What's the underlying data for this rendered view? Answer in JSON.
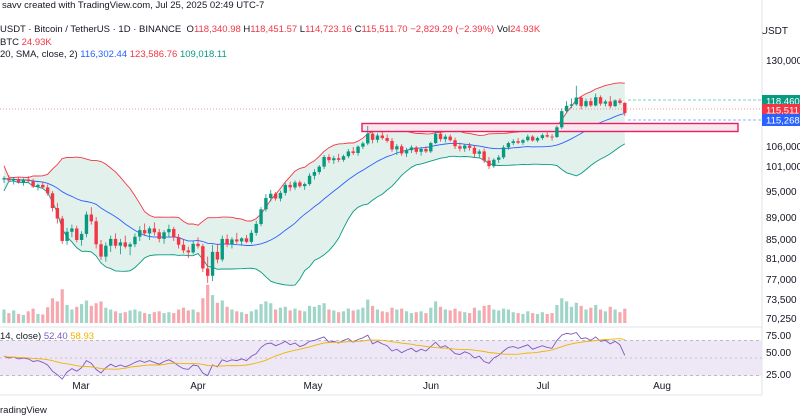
{
  "header": {
    "title": "savv created with TradingView.com, Jul 25, 2025 02:49 UTC-7",
    "symbol_line": "USDT · Bitcoin / TetherUS · 1D · BINANCE",
    "open_label": "O",
    "open": "118,340.98",
    "high_label": "H",
    "high": "118,451.57",
    "low_label": "L",
    "low": "114,723.16",
    "close_label": "C",
    "close": "115,511.70",
    "change": "−2,829.29 (−2.39%)",
    "vol_label": "Vol",
    "vol": "24.93K",
    "vol_line_label": "BTC",
    "vol_line_value": "24.93K",
    "bb_label": "20, SMA, close, 2)",
    "bb_basis": "116,302.44",
    "bb_upper": "123,586.76",
    "bb_lower": "109,018.11",
    "rsi_label": "14, close)",
    "rsi_value": "52.40",
    "rsi_ma": "58.93",
    "unit": "USDT",
    "footer": "radingView"
  },
  "colors": {
    "up": "#089981",
    "down": "#f23645",
    "basis": "#2962ff",
    "upper": "#f23645",
    "lower": "#089981",
    "band_fill": "#e3f1ec",
    "rsi_line": "#7e57c2",
    "rsi_ma": "#f0b400",
    "rsi_fill": "#ede7f6",
    "zone_border": "#e91e63"
  },
  "chart_data": {
    "type": "candlestick",
    "price_ticks": [
      "130,000",
      "118,460",
      "115,511",
      "115,268",
      "106,000",
      "101,000",
      "95,000",
      "89,000",
      "85,000",
      "81,000",
      "77,000",
      "73,500",
      "70,250"
    ],
    "rsi_ticks": [
      "75.00",
      "50.00",
      "25.00"
    ],
    "months": [
      "Mar",
      "Apr",
      "May",
      "Jun",
      "Jul",
      "Aug"
    ],
    "price_labels": [
      {
        "text": "118,460",
        "color": "#089981"
      },
      {
        "text": "115,511",
        "color": "#f23645"
      },
      {
        "text": "115,268",
        "color": "#2962ff"
      }
    ],
    "resistance_zone": [
      112000,
      111000
    ],
    "candles": [
      [
        98000,
        98800,
        97200,
        98300
      ],
      [
        98300,
        99000,
        97500,
        97800
      ],
      [
        97800,
        98500,
        96800,
        98100
      ],
      [
        98100,
        98600,
        97000,
        97400
      ],
      [
        97400,
        98300,
        96500,
        98000
      ],
      [
        98000,
        98800,
        97300,
        97600
      ],
      [
        97600,
        98200,
        96000,
        96300
      ],
      [
        96300,
        97000,
        95400,
        96700
      ],
      [
        96700,
        97500,
        95800,
        96100
      ],
      [
        96100,
        96800,
        94200,
        94700
      ],
      [
        94700,
        95200,
        90500,
        91300
      ],
      [
        91300,
        92500,
        88000,
        88900
      ],
      [
        88900,
        89500,
        84200,
        84800
      ],
      [
        84800,
        87200,
        84000,
        86500
      ],
      [
        86500,
        87800,
        85500,
        87100
      ],
      [
        87100,
        87600,
        84500,
        85000
      ],
      [
        85000,
        86600,
        83800,
        86100
      ],
      [
        86100,
        90500,
        85500,
        89800
      ],
      [
        89800,
        91500,
        87800,
        88400
      ],
      [
        88400,
        89200,
        83200,
        84100
      ],
      [
        84100,
        85000,
        80800,
        81500
      ],
      [
        81500,
        84500,
        80500,
        83800
      ],
      [
        83800,
        85800,
        82500,
        85200
      ],
      [
        85200,
        86200,
        83200,
        83800
      ],
      [
        83800,
        85200,
        82000,
        84500
      ],
      [
        84500,
        85800,
        83200,
        83600
      ],
      [
        83600,
        84500,
        81800,
        84100
      ],
      [
        84100,
        86200,
        83500,
        85600
      ],
      [
        85600,
        87500,
        84800,
        86800
      ],
      [
        86800,
        88000,
        85800,
        86200
      ],
      [
        86200,
        87500,
        85000,
        87100
      ],
      [
        87100,
        88200,
        85800,
        86400
      ],
      [
        86400,
        87000,
        84500,
        85200
      ],
      [
        85200,
        86800,
        84200,
        86400
      ],
      [
        86400,
        87800,
        85500,
        87000
      ],
      [
        87000,
        87400,
        84800,
        85500
      ],
      [
        85500,
        86100,
        83200,
        84000
      ],
      [
        84000,
        85200,
        82200,
        82800
      ],
      [
        82800,
        83600,
        81200,
        82400
      ],
      [
        82400,
        84800,
        82000,
        84200
      ],
      [
        84200,
        85500,
        83200,
        83700
      ],
      [
        83700,
        84200,
        78500,
        79200
      ],
      [
        79200,
        81500,
        76500,
        77800
      ],
      [
        77800,
        84000,
        76800,
        82500
      ],
      [
        82500,
        84200,
        80200,
        80900
      ],
      [
        80900,
        85800,
        80500,
        85200
      ],
      [
        85200,
        86000,
        83500,
        84100
      ],
      [
        84100,
        85500,
        83200,
        85100
      ],
      [
        85100,
        86300,
        84200,
        84700
      ],
      [
        84700,
        85500,
        83800,
        85300
      ],
      [
        85300,
        85900,
        84300,
        84600
      ],
      [
        84600,
        86800,
        84200,
        86300
      ],
      [
        86300,
        88500,
        85800,
        87900
      ],
      [
        87900,
        91500,
        87500,
        91000
      ],
      [
        91000,
        94500,
        90500,
        93600
      ],
      [
        93600,
        95500,
        92800,
        94600
      ],
      [
        94600,
        95000,
        93000,
        93500
      ],
      [
        93500,
        95300,
        92800,
        94800
      ],
      [
        94800,
        97200,
        94200,
        96700
      ],
      [
        96700,
        97500,
        95200,
        96100
      ],
      [
        96100,
        97800,
        95500,
        97300
      ],
      [
        97300,
        97800,
        96000,
        96400
      ],
      [
        96400,
        97300,
        95500,
        96900
      ],
      [
        96900,
        99500,
        96500,
        98900
      ],
      [
        98900,
        100500,
        98000,
        99800
      ],
      [
        99800,
        101500,
        99200,
        101100
      ],
      [
        101100,
        104000,
        100500,
        103500
      ],
      [
        103500,
        104200,
        102000,
        102700
      ],
      [
        102700,
        103800,
        101800,
        103200
      ],
      [
        103200,
        104300,
        102200,
        102800
      ],
      [
        102800,
        104100,
        102300,
        103700
      ],
      [
        103700,
        105500,
        103200,
        104900
      ],
      [
        104900,
        106000,
        104000,
        104500
      ],
      [
        104500,
        106500,
        103800,
        106100
      ],
      [
        106100,
        107500,
        105500,
        107000
      ],
      [
        107000,
        111900,
        106500,
        109700
      ],
      [
        109700,
        110500,
        107000,
        108000
      ],
      [
        108000,
        109800,
        107200,
        109200
      ],
      [
        109200,
        110200,
        108000,
        108500
      ],
      [
        108500,
        109500,
        107200,
        107700
      ],
      [
        107700,
        108500,
        104800,
        105400
      ],
      [
        105400,
        106800,
        104000,
        106200
      ],
      [
        106200,
        106800,
        103800,
        104400
      ],
      [
        104400,
        105800,
        103500,
        105200
      ],
      [
        105200,
        106500,
        104500,
        105900
      ],
      [
        105900,
        106300,
        104200,
        104800
      ],
      [
        104800,
        106000,
        103800,
        105500
      ],
      [
        105500,
        106200,
        104500,
        104900
      ],
      [
        104900,
        107500,
        104500,
        107100
      ],
      [
        107100,
        110400,
        106800,
        109700
      ],
      [
        109700,
        110300,
        107500,
        108200
      ],
      [
        108200,
        109500,
        107300,
        108900
      ],
      [
        108900,
        109500,
        107500,
        107900
      ],
      [
        107900,
        108600,
        105500,
        106200
      ],
      [
        106200,
        107200,
        104900,
        105600
      ],
      [
        105600,
        106800,
        104800,
        106400
      ],
      [
        106400,
        107200,
        105100,
        105800
      ],
      [
        105800,
        106500,
        103500,
        104300
      ],
      [
        104300,
        105400,
        103200,
        104900
      ],
      [
        104900,
        105600,
        102000,
        102600
      ],
      [
        102600,
        103500,
        100500,
        101200
      ],
      [
        101200,
        103200,
        100800,
        102800
      ],
      [
        102800,
        104000,
        102000,
        103400
      ],
      [
        103400,
        106500,
        103000,
        105900
      ],
      [
        105900,
        107500,
        105300,
        107100
      ],
      [
        107100,
        108200,
        106500,
        107600
      ],
      [
        107600,
        108500,
        106800,
        107200
      ],
      [
        107200,
        108300,
        106600,
        107900
      ],
      [
        107900,
        109500,
        107500,
        108900
      ],
      [
        108900,
        109300,
        107500,
        107800
      ],
      [
        107800,
        108900,
        107300,
        108500
      ],
      [
        108500,
        109800,
        108000,
        109300
      ],
      [
        109300,
        110500,
        108600,
        108900
      ],
      [
        108900,
        109600,
        107800,
        108800
      ],
      [
        108800,
        112000,
        108500,
        111500
      ],
      [
        111500,
        116800,
        111000,
        116000
      ],
      [
        116000,
        118800,
        115500,
        117500
      ],
      [
        117500,
        119500,
        116800,
        117900
      ],
      [
        117900,
        123100,
        117500,
        119800
      ],
      [
        119800,
        120200,
        116500,
        117400
      ],
      [
        117400,
        119500,
        117000,
        118800
      ],
      [
        118800,
        119700,
        117200,
        117600
      ],
      [
        117600,
        120900,
        117300,
        119900
      ],
      [
        119900,
        120400,
        117500,
        118100
      ],
      [
        118100,
        119200,
        117300,
        118700
      ],
      [
        118700,
        120200,
        116800,
        117400
      ],
      [
        117400,
        119300,
        117200,
        119000
      ],
      [
        119000,
        119600,
        117800,
        118300
      ],
      [
        118300,
        118500,
        114700,
        115500
      ]
    ],
    "volumes": [
      0.3,
      0.22,
      0.28,
      0.2,
      0.18,
      0.26,
      0.32,
      0.2,
      0.19,
      0.35,
      0.55,
      0.48,
      0.75,
      0.4,
      0.3,
      0.36,
      0.42,
      0.5,
      0.38,
      0.44,
      0.48,
      0.34,
      0.3,
      0.26,
      0.22,
      0.24,
      0.28,
      0.3,
      0.26,
      0.22,
      0.2,
      0.24,
      0.26,
      0.22,
      0.24,
      0.22,
      0.3,
      0.34,
      0.28,
      0.3,
      0.24,
      0.55,
      0.85,
      0.62,
      0.45,
      0.5,
      0.36,
      0.3,
      0.26,
      0.24,
      0.2,
      0.26,
      0.3,
      0.42,
      0.48,
      0.44,
      0.3,
      0.34,
      0.36,
      0.28,
      0.32,
      0.28,
      0.26,
      0.38,
      0.36,
      0.4,
      0.44,
      0.3,
      0.28,
      0.24,
      0.26,
      0.32,
      0.28,
      0.3,
      0.34,
      0.52,
      0.38,
      0.3,
      0.26,
      0.24,
      0.34,
      0.3,
      0.32,
      0.26,
      0.22,
      0.24,
      0.26,
      0.22,
      0.34,
      0.48,
      0.36,
      0.3,
      0.28,
      0.32,
      0.26,
      0.24,
      0.22,
      0.34,
      0.28,
      0.38,
      0.4,
      0.3,
      0.28,
      0.32,
      0.3,
      0.24,
      0.22,
      0.2,
      0.26,
      0.22,
      0.2,
      0.24,
      0.2,
      0.22,
      0.4,
      0.55,
      0.48,
      0.36,
      0.45,
      0.38,
      0.3,
      0.34,
      0.4,
      0.3,
      0.26,
      0.36,
      0.3,
      0.24,
      0.32
    ],
    "rsi": [
      52,
      50,
      51,
      49,
      50,
      49,
      46,
      47,
      45,
      42,
      35,
      31,
      26,
      34,
      38,
      35,
      39,
      47,
      44,
      37,
      33,
      39,
      43,
      40,
      42,
      40,
      42,
      45,
      47,
      45,
      47,
      45,
      43,
      46,
      48,
      45,
      41,
      38,
      37,
      42,
      41,
      33,
      30,
      42,
      40,
      48,
      46,
      48,
      47,
      49,
      47,
      52,
      55,
      62,
      66,
      67,
      64,
      66,
      69,
      65,
      67,
      63,
      65,
      69,
      70,
      72,
      74,
      68,
      69,
      67,
      70,
      72,
      68,
      71,
      73,
      76,
      66,
      69,
      66,
      64,
      58,
      60,
      56,
      59,
      61,
      57,
      60,
      58,
      63,
      68,
      62,
      64,
      60,
      55,
      54,
      57,
      55,
      50,
      52,
      46,
      44,
      50,
      53,
      58,
      62,
      63,
      61,
      63,
      65,
      60,
      62,
      64,
      62,
      61,
      70,
      76,
      78,
      77,
      79,
      72,
      73,
      70,
      74,
      69,
      70,
      66,
      69,
      65,
      53
    ]
  }
}
